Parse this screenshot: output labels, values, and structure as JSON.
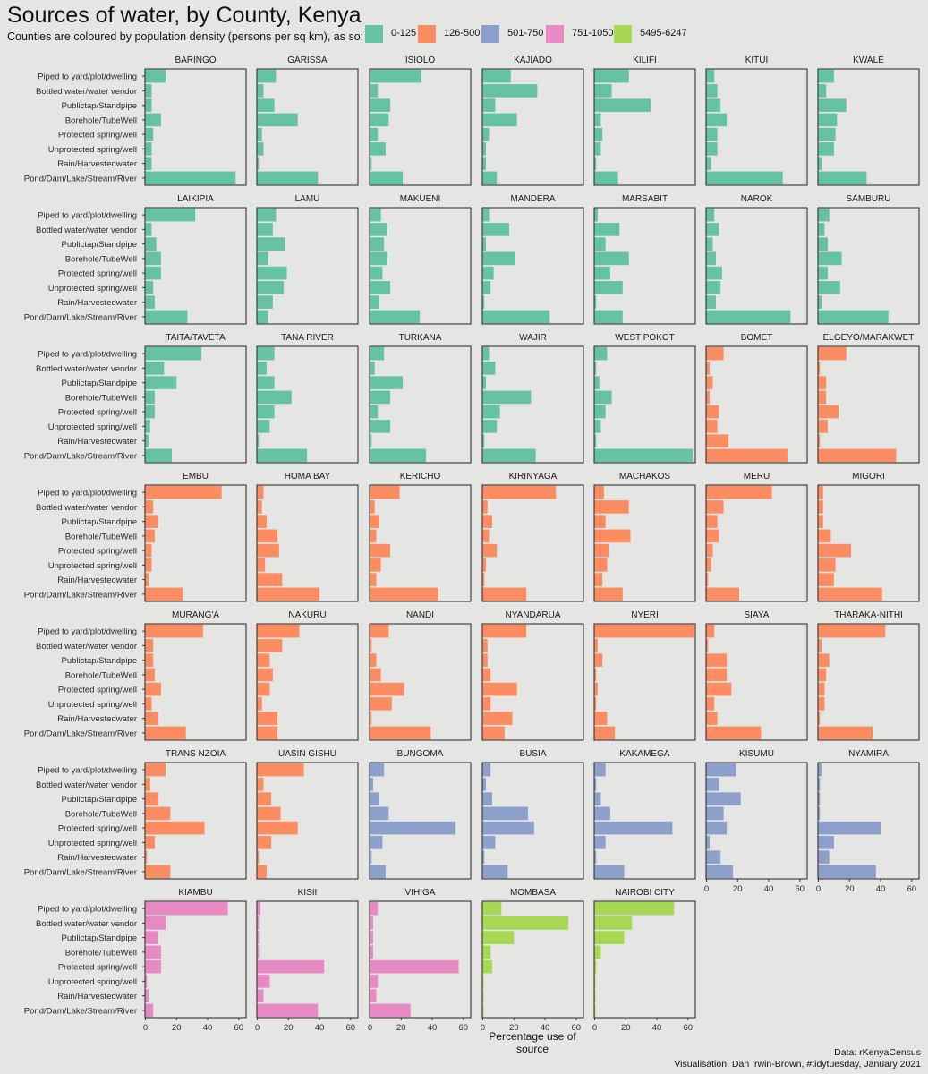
{
  "title": "Sources of water, by County, Kenya",
  "subtitle": "Counties are coloured by population density (persons per sq km), as so:",
  "legend": [
    {
      "label": "0-125",
      "color": "#66c2a5"
    },
    {
      "label": "126-500",
      "color": "#fc8d62"
    },
    {
      "label": "501-750",
      "color": "#8da0cb"
    },
    {
      "label": "751-1050",
      "color": "#e78ac3"
    },
    {
      "label": "5495-6247",
      "color": "#a6d854"
    }
  ],
  "caption_data": "Data: rKenyaCensus",
  "caption_credit": "Visualisation: Dan Irwin-Brown, #tidytuesday, January 2021",
  "chart_data": {
    "type": "bar",
    "orientation": "horizontal",
    "facet_by": "county",
    "xlabel": "Percentage use of source",
    "xlim": [
      0,
      65
    ],
    "xticks": [
      0,
      20,
      40,
      60
    ],
    "categories": [
      "Piped to yard/plot/dwelling",
      "Bottled water/water vendor",
      "Publictap/Standpipe",
      "Borehole/TubeWell",
      "Protected spring/well",
      "Unprotected spring/well",
      "Rain/Harvestedwater",
      "Pond/Dam/Lake/Stream/River"
    ],
    "counties": [
      {
        "name": "BARINGO",
        "group": 0,
        "values": [
          13,
          4,
          4,
          10,
          5,
          4,
          4,
          58
        ]
      },
      {
        "name": "GARISSA",
        "group": 0,
        "values": [
          12,
          4,
          11,
          26,
          3,
          4,
          1,
          39
        ]
      },
      {
        "name": "ISIOLO",
        "group": 0,
        "values": [
          33,
          5,
          13,
          12,
          5,
          10,
          1,
          21
        ]
      },
      {
        "name": "KAJIADO",
        "group": 0,
        "values": [
          18,
          35,
          8,
          22,
          4,
          2,
          2,
          9
        ]
      },
      {
        "name": "KILIFI",
        "group": 0,
        "values": [
          22,
          11,
          36,
          4,
          5,
          4,
          1,
          15
        ]
      },
      {
        "name": "KITUI",
        "group": 0,
        "values": [
          5,
          7,
          9,
          13,
          7,
          7,
          3,
          49
        ]
      },
      {
        "name": "KWALE",
        "group": 0,
        "values": [
          10,
          5,
          18,
          12,
          11,
          10,
          2,
          31
        ]
      },
      {
        "name": "LAIKIPIA",
        "group": 0,
        "values": [
          32,
          4,
          7,
          10,
          10,
          5,
          6,
          27
        ]
      },
      {
        "name": "LAMU",
        "group": 0,
        "values": [
          12,
          10,
          18,
          7,
          19,
          17,
          10,
          7
        ]
      },
      {
        "name": "MAKUENI",
        "group": 0,
        "values": [
          7,
          11,
          9,
          11,
          8,
          13,
          6,
          32
        ]
      },
      {
        "name": "MANDERA",
        "group": 0,
        "values": [
          4,
          17,
          2,
          21,
          7,
          5,
          1,
          43
        ]
      },
      {
        "name": "MARSABIT",
        "group": 0,
        "values": [
          2,
          16,
          7,
          22,
          10,
          18,
          1,
          18
        ]
      },
      {
        "name": "NAROK",
        "group": 0,
        "values": [
          5,
          8,
          4,
          6,
          10,
          9,
          6,
          54
        ]
      },
      {
        "name": "SAMBURU",
        "group": 0,
        "values": [
          7,
          4,
          6,
          15,
          6,
          14,
          2,
          45
        ]
      },
      {
        "name": "TAITA/TAVETA",
        "group": 0,
        "values": [
          36,
          12,
          20,
          6,
          6,
          3,
          2,
          17
        ]
      },
      {
        "name": "TANA RIVER",
        "group": 0,
        "values": [
          11,
          6,
          11,
          22,
          11,
          8,
          1,
          32
        ]
      },
      {
        "name": "TURKANA",
        "group": 0,
        "values": [
          9,
          3,
          21,
          13,
          5,
          13,
          1,
          36
        ]
      },
      {
        "name": "WAJIR",
        "group": 0,
        "values": [
          4,
          8,
          2,
          31,
          11,
          9,
          1,
          34
        ]
      },
      {
        "name": "WEST POKOT",
        "group": 0,
        "values": [
          8,
          1,
          3,
          11,
          7,
          4,
          1,
          63
        ]
      },
      {
        "name": "BOMET",
        "group": 1,
        "values": [
          11,
          2,
          4,
          2,
          8,
          7,
          14,
          52
        ]
      },
      {
        "name": "ELGEYO/MARAKWET",
        "group": 1,
        "values": [
          18,
          1,
          5,
          5,
          13,
          6,
          1,
          50
        ]
      },
      {
        "name": "EMBU",
        "group": 1,
        "values": [
          49,
          5,
          8,
          6,
          4,
          4,
          2,
          24
        ]
      },
      {
        "name": "HOMA BAY",
        "group": 1,
        "values": [
          4,
          3,
          6,
          13,
          14,
          5,
          16,
          40
        ]
      },
      {
        "name": "KERICHO",
        "group": 1,
        "values": [
          19,
          3,
          6,
          4,
          13,
          7,
          4,
          44
        ]
      },
      {
        "name": "KIRINYAGA",
        "group": 1,
        "values": [
          47,
          3,
          6,
          4,
          9,
          2,
          1,
          28
        ]
      },
      {
        "name": "MACHAKOS",
        "group": 1,
        "values": [
          6,
          22,
          7,
          23,
          9,
          8,
          5,
          18
        ]
      },
      {
        "name": "MERU",
        "group": 1,
        "values": [
          42,
          11,
          7,
          8,
          4,
          3,
          1,
          21
        ]
      },
      {
        "name": "MIGORI",
        "group": 1,
        "values": [
          3,
          3,
          3,
          8,
          21,
          11,
          10,
          41
        ]
      },
      {
        "name": "MURANG'A",
        "group": 1,
        "values": [
          37,
          5,
          5,
          6,
          10,
          4,
          8,
          26
        ]
      },
      {
        "name": "NAKURU",
        "group": 1,
        "values": [
          27,
          16,
          8,
          10,
          8,
          3,
          13,
          13
        ]
      },
      {
        "name": "NANDI",
        "group": 1,
        "values": [
          12,
          1,
          4,
          7,
          22,
          14,
          1,
          39
        ]
      },
      {
        "name": "NYANDARUA",
        "group": 1,
        "values": [
          28,
          3,
          3,
          5,
          22,
          5,
          19,
          14
        ]
      },
      {
        "name": "NYERI",
        "group": 1,
        "values": [
          64,
          2,
          5,
          1,
          2,
          1,
          8,
          13
        ]
      },
      {
        "name": "SIAYA",
        "group": 1,
        "values": [
          5,
          1,
          13,
          13,
          16,
          5,
          7,
          35
        ]
      },
      {
        "name": "THARAKA-NITHI",
        "group": 1,
        "values": [
          43,
          2,
          7,
          5,
          4,
          4,
          1,
          35
        ]
      },
      {
        "name": "TRANS NZOIA",
        "group": 1,
        "values": [
          13,
          3,
          8,
          16,
          38,
          6,
          1,
          16
        ]
      },
      {
        "name": "UASIN GISHU",
        "group": 1,
        "values": [
          30,
          4,
          9,
          15,
          26,
          9,
          1,
          6
        ]
      },
      {
        "name": "BUNGOMA",
        "group": 2,
        "values": [
          9,
          2,
          6,
          12,
          55,
          8,
          1,
          10
        ]
      },
      {
        "name": "BUSIA",
        "group": 2,
        "values": [
          5,
          2,
          6,
          29,
          33,
          8,
          1,
          16
        ]
      },
      {
        "name": "KAKAMEGA",
        "group": 2,
        "values": [
          7,
          1,
          4,
          10,
          50,
          7,
          1,
          19
        ]
      },
      {
        "name": "KISUMU",
        "group": 2,
        "values": [
          19,
          8,
          22,
          11,
          13,
          2,
          9,
          17
        ]
      },
      {
        "name": "NYAMIRA",
        "group": 2,
        "values": [
          2,
          1,
          1,
          1,
          40,
          10,
          7,
          37
        ]
      },
      {
        "name": "KIAMBU",
        "group": 3,
        "values": [
          53,
          13,
          8,
          10,
          10,
          1,
          2,
          5
        ]
      },
      {
        "name": "KISII",
        "group": 3,
        "values": [
          2,
          1,
          1,
          1,
          43,
          8,
          4,
          39
        ]
      },
      {
        "name": "VIHIGA",
        "group": 3,
        "values": [
          5,
          2,
          2,
          2,
          57,
          5,
          4,
          26
        ]
      },
      {
        "name": "MOMBASA",
        "group": 4,
        "values": [
          12,
          55,
          20,
          5,
          6,
          0.5,
          0.5,
          0.5
        ]
      },
      {
        "name": "NAIROBI CITY",
        "group": 4,
        "values": [
          51,
          24,
          19,
          4,
          1,
          0.5,
          0.5,
          0.5
        ]
      }
    ]
  }
}
